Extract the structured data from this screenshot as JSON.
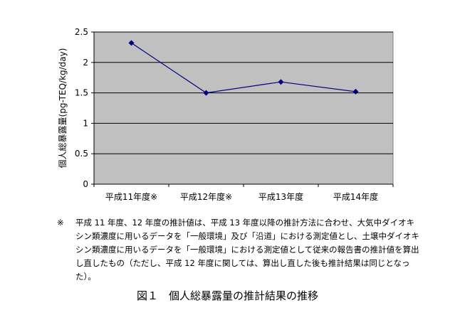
{
  "chart_data": {
    "type": "line",
    "categories": [
      "平成11年度※",
      "平成12年度※",
      "平成13年度",
      "平成14年度"
    ],
    "series": [
      {
        "values": [
          2.32,
          1.5,
          1.68,
          1.52
        ],
        "color": "#000080"
      }
    ],
    "ylabel": "個人総暴露量(pg-TEQ/kg/day)",
    "yticks": [
      "0",
      "0.5",
      "1",
      "1.5",
      "2",
      "2.5"
    ],
    "ylim": [
      0,
      2.5
    ],
    "grid": true,
    "plot_background": "#c0c0c0"
  },
  "note": {
    "mark": "※",
    "text": "平成 11 年度、12 年度の推計値は、平成 13 年度以降の推計方法に合わせ、大気中ダイオキシン類濃度に用いるデータを「一般環境」及び「沿道」における測定値とし、土壌中ダイオキシン類濃度に用いるデータを「一般環境」における測定値として従来の報告書の推計値を算出し直したもの（ただし、平成 12 年度に関しては、算出し直した後も推計結果は同じとなった）。"
  },
  "caption": "図１　個人総暴露量の推計結果の推移"
}
